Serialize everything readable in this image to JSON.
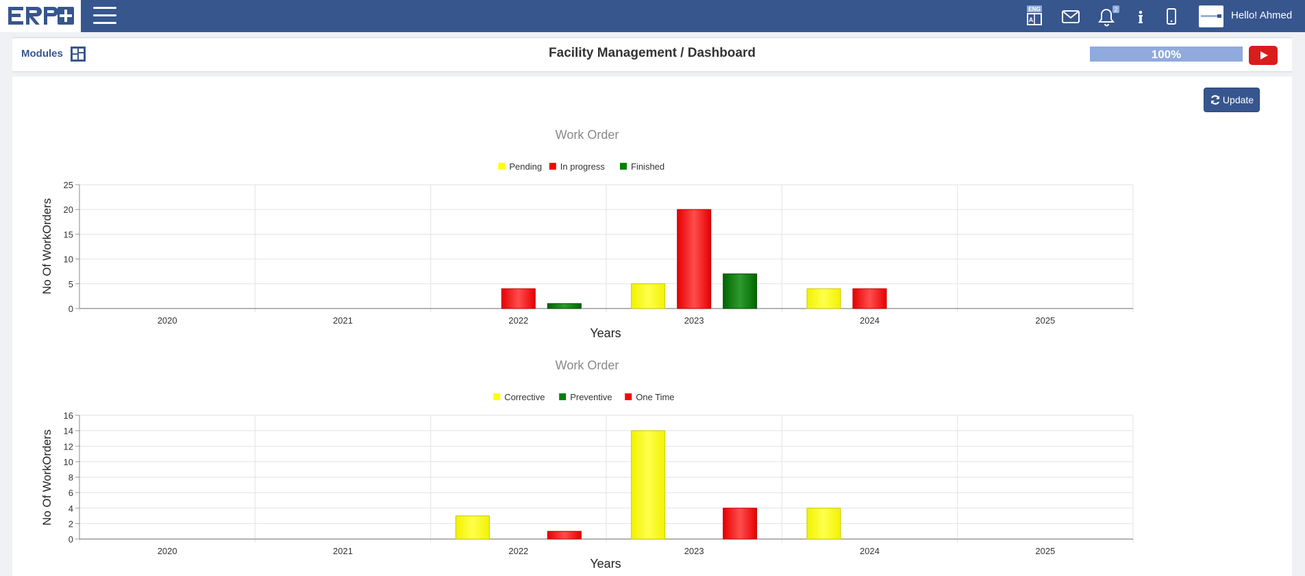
{
  "nav": {
    "logo_text": "ERP",
    "language_badge": "ENG",
    "notification_count": "2",
    "greeting": "Hello! Ahmed"
  },
  "header": {
    "modules_label": "Modules",
    "title": "Facility Management / Dashboard",
    "progress_text": "100%",
    "progress_value": 100
  },
  "actions": {
    "update_label": "Update"
  },
  "colors": {
    "nav_bg": "#37568e",
    "pending": "#ffff00",
    "in_progress": "#ff0000",
    "finished": "#008000"
  },
  "chart_data": [
    {
      "type": "bar",
      "title": "Work Order",
      "xlabel": "Years",
      "ylabel": "No Of WorkOrders",
      "categories": [
        "2020",
        "2021",
        "2022",
        "2023",
        "2024",
        "2025"
      ],
      "ylim": [
        0,
        25
      ],
      "yticks": [
        0,
        5,
        10,
        15,
        20,
        25
      ],
      "legend_position": "top",
      "grid": true,
      "series": [
        {
          "name": "Pending",
          "color": "#ffff00",
          "values": [
            0,
            0,
            0,
            5,
            4,
            0
          ]
        },
        {
          "name": "In progress",
          "color": "#ff0000",
          "values": [
            0,
            0,
            4,
            20,
            4,
            0
          ]
        },
        {
          "name": "Finished",
          "color": "#008000",
          "values": [
            0,
            0,
            1,
            7,
            0,
            0
          ]
        }
      ]
    },
    {
      "type": "bar",
      "title": "Work Order",
      "xlabel": "Years",
      "ylabel": "No Of WorkOrders",
      "categories": [
        "2020",
        "2021",
        "2022",
        "2023",
        "2024",
        "2025"
      ],
      "ylim": [
        0,
        16
      ],
      "yticks": [
        0,
        2,
        4,
        6,
        8,
        10,
        12,
        14,
        16
      ],
      "legend_position": "top",
      "grid": true,
      "series": [
        {
          "name": "Corrective",
          "color": "#ffff00",
          "values": [
            0,
            0,
            3,
            14,
            4,
            0
          ]
        },
        {
          "name": "Preventive",
          "color": "#008000",
          "values": [
            0,
            0,
            0,
            0,
            0,
            0
          ]
        },
        {
          "name": "One Time",
          "color": "#ff0000",
          "values": [
            0,
            0,
            1,
            4,
            0,
            0
          ]
        }
      ]
    }
  ]
}
